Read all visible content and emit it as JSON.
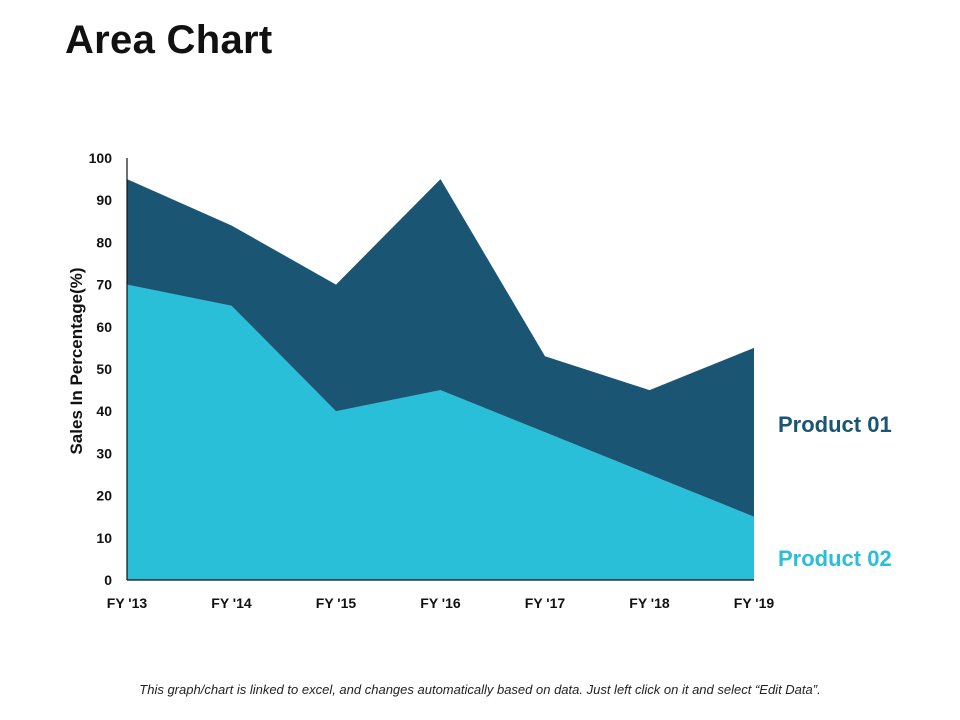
{
  "page": {
    "title": "Area Chart",
    "footnote": "This graph/chart is linked to excel, and changes automatically based on data. Just left click on it and select “Edit Data”."
  },
  "chart_data": {
    "type": "area",
    "stacked": true,
    "title": "Area Chart",
    "xlabel": "",
    "ylabel": "Sales In Percentage(%)",
    "ylim": [
      0,
      100
    ],
    "yticks": [
      0,
      10,
      20,
      30,
      40,
      50,
      60,
      70,
      80,
      90,
      100
    ],
    "categories": [
      "FY '13",
      "FY '14",
      "FY '15",
      "FY '16",
      "FY '17",
      "FY '18",
      "FY '19"
    ],
    "series": [
      {
        "name": "Product 02",
        "values": [
          70,
          65,
          40,
          45,
          35,
          25,
          15
        ],
        "color": "#29BFD9"
      },
      {
        "name": "Product 01",
        "values": [
          25,
          19,
          30,
          50,
          18,
          20,
          40
        ],
        "color": "#1A5673"
      }
    ],
    "legend": "right"
  }
}
